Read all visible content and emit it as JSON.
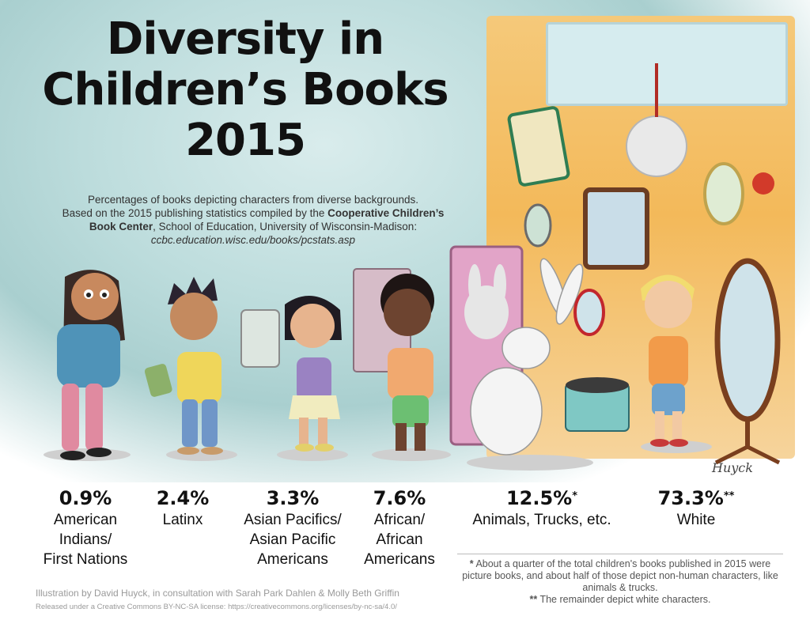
{
  "title": {
    "line1": "Diversity in",
    "line2": "Children’s Books",
    "line3": "2015"
  },
  "subtitle": {
    "line1": "Percentages of books depicting characters from diverse backgrounds.",
    "line2a": "Based on the 2015 publishing statistics compiled by the ",
    "line2b": "Cooperative Children’s",
    "line3a": "Book Center",
    "line3b": ", School of Education, University of Wisconsin-Madison:",
    "url": "ccbc.education.wisc.edu/books/pcstats.asp"
  },
  "chart_data": {
    "type": "bar",
    "title": "Diversity in Children’s Books 2015",
    "categories": [
      "American Indians/ First Nations",
      "Latinx",
      "Asian Pacifics/ Asian Pacific Americans",
      "African/ African Americans",
      "Animals, Trucks, etc.",
      "White"
    ],
    "values": [
      0.9,
      2.4,
      3.3,
      7.6,
      12.5,
      73.3
    ],
    "value_labels": [
      "0.9%",
      "2.4%",
      "3.3%",
      "7.6%",
      "12.5%",
      "73.3%"
    ],
    "value_markers": [
      "",
      "",
      "",
      "",
      "*",
      "**"
    ],
    "label_lines": [
      [
        "American",
        "Indians/",
        "First Nations"
      ],
      [
        "Latinx"
      ],
      [
        "Asian Pacifics/",
        "Asian Pacific",
        "Americans"
      ],
      [
        "African/",
        "African",
        "Americans"
      ],
      [
        "Animals, Trucks, etc."
      ],
      [
        "White"
      ]
    ],
    "unit": "%"
  },
  "footnotes": {
    "star_marker": "*",
    "star_text": " About a quarter of the total children's books published in 2015 were picture books, and about half of those depict non-human characters, like animals & trucks.",
    "double_marker": "**",
    "double_text": " The remainder depict white characters."
  },
  "credits": {
    "illustration": "Illustration by David Huyck, in consultation with Sarah Park Dahlen & Molly Beth Griffin",
    "license": "Released under a Creative Commons BY-NC-SA license: https://creativecommons.org/licenses/by-nc-sa/4.0/",
    "signature": "Huyck"
  },
  "colors": {
    "background": "#ffffff",
    "sky": "#bcdcdc",
    "wall": "#f3b95a",
    "text": "#111111",
    "muted": "#9a9a9a"
  }
}
